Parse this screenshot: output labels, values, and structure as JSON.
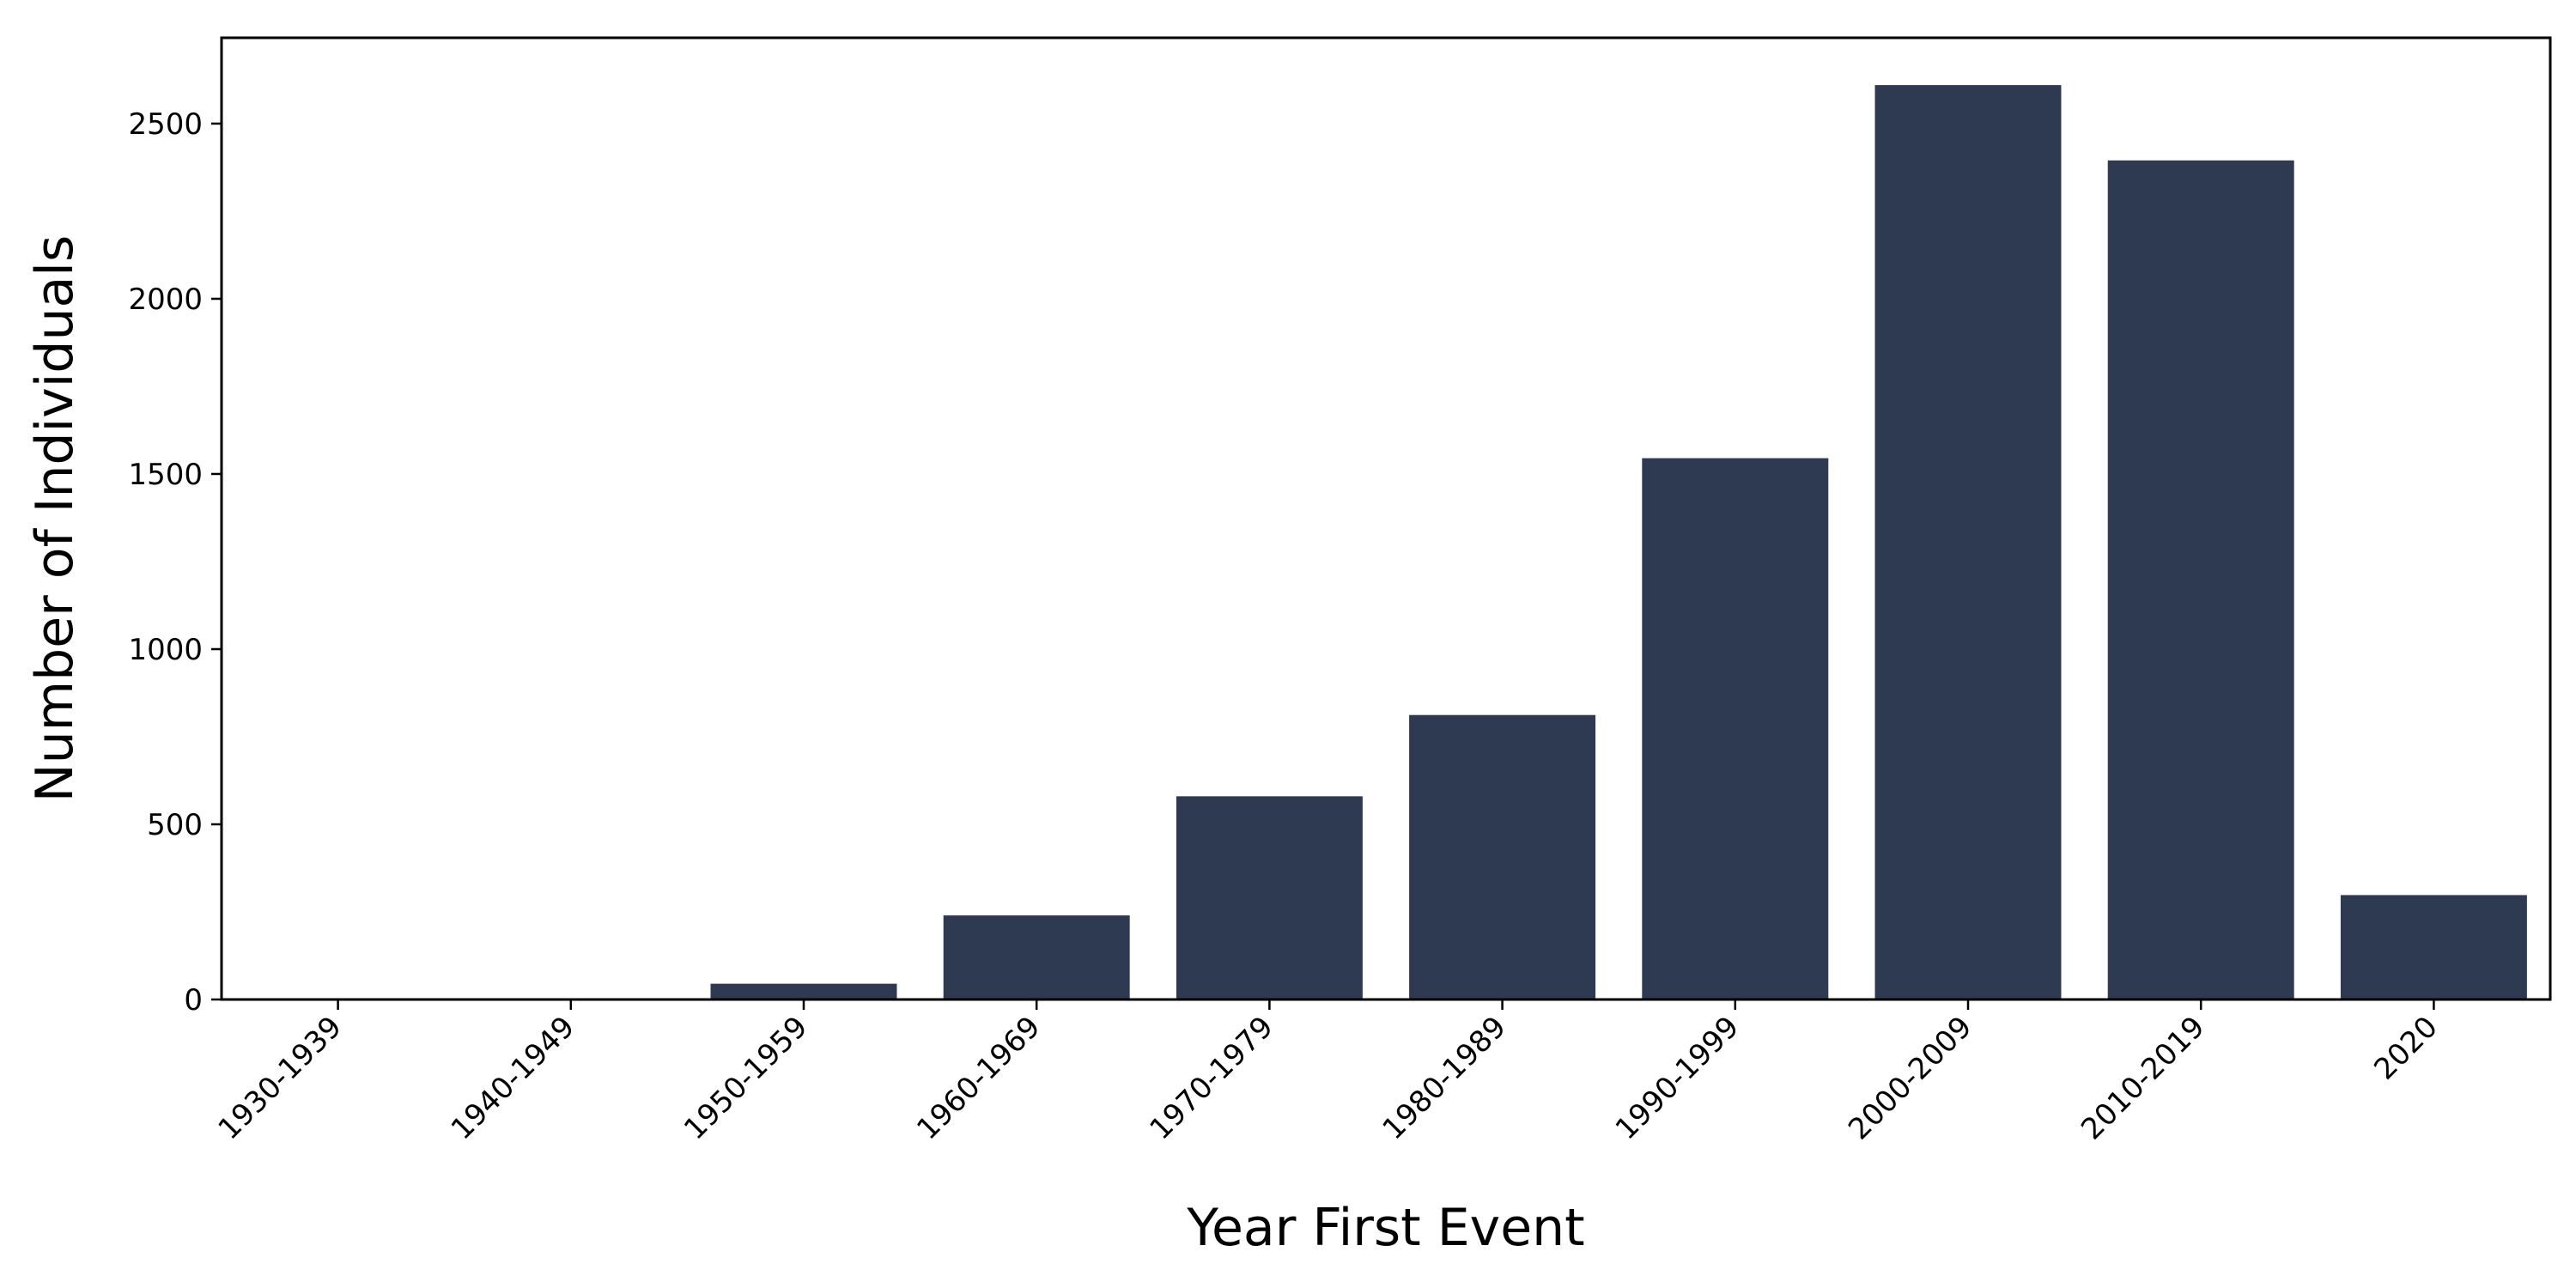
{
  "chart_data": {
    "type": "bar",
    "title": "",
    "xlabel": "Year First Event",
    "ylabel": "Number of Individuals",
    "categories": [
      "1930-1939",
      "1940-1949",
      "1950-1959",
      "1960-1969",
      "1970-1979",
      "1980-1989",
      "1990-1999",
      "2000-2009",
      "2010-2019",
      "2020"
    ],
    "values": [
      2,
      3,
      45,
      240,
      580,
      812,
      1545,
      2610,
      2395,
      298
    ],
    "ylim": [
      0,
      2745
    ],
    "yticks": [
      0,
      500,
      1000,
      1500,
      2000,
      2500
    ],
    "grid": false,
    "legend": "none",
    "bar_color": "#2d3a51"
  }
}
